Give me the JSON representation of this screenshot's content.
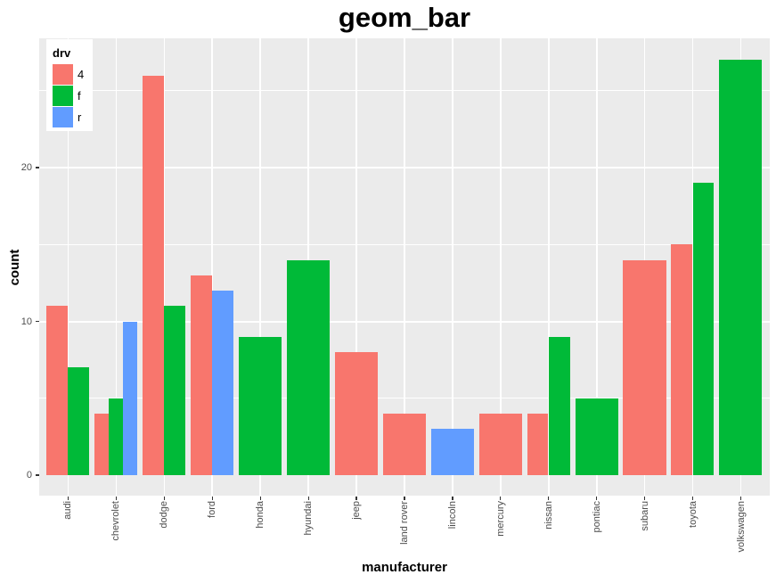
{
  "title": "geom_bar",
  "axes": {
    "x": {
      "label": "manufacturer"
    },
    "y": {
      "label": "count"
    }
  },
  "chart_data": {
    "type": "bar",
    "position": "dodge",
    "title": "geom_bar",
    "xlabel": "manufacturer",
    "ylabel": "count",
    "categories": [
      "audi",
      "chevrolet",
      "dodge",
      "ford",
      "honda",
      "hyundai",
      "jeep",
      "land rover",
      "lincoln",
      "mercury",
      "nissan",
      "pontiac",
      "subaru",
      "toyota",
      "volkswagen"
    ],
    "series": [
      {
        "name": "4",
        "color": "#F8766D",
        "values": [
          11,
          4,
          26,
          13,
          null,
          null,
          8,
          4,
          null,
          4,
          4,
          null,
          14,
          15,
          null
        ]
      },
      {
        "name": "f",
        "color": "#00BA38",
        "values": [
          7,
          5,
          11,
          null,
          9,
          14,
          null,
          null,
          null,
          null,
          9,
          5,
          null,
          19,
          27
        ]
      },
      {
        "name": "r",
        "color": "#619CFF",
        "values": [
          null,
          10,
          null,
          12,
          null,
          null,
          null,
          null,
          3,
          null,
          null,
          null,
          null,
          null,
          null
        ]
      }
    ],
    "legend": {
      "title": "drv",
      "position": "inside-top-left",
      "items": [
        {
          "label": "4",
          "color": "#F8766D"
        },
        {
          "label": "f",
          "color": "#00BA38"
        },
        {
          "label": "r",
          "color": "#619CFF"
        }
      ]
    },
    "y_ticks": [
      0,
      10,
      20
    ],
    "y_minor_gridlines": [
      5,
      15,
      25
    ],
    "y_major_gridlines": [
      10,
      20
    ],
    "ylim": [
      -1.35,
      28.35
    ],
    "grid": true,
    "theme": {
      "panel_bg": "#EBEBEB",
      "grid_color": "#FFFFFF",
      "tick_label_color": "#4D4D4D",
      "tick_color": "#333333",
      "text_color": "#000000",
      "legend_bg": "#FFFFFF"
    }
  }
}
